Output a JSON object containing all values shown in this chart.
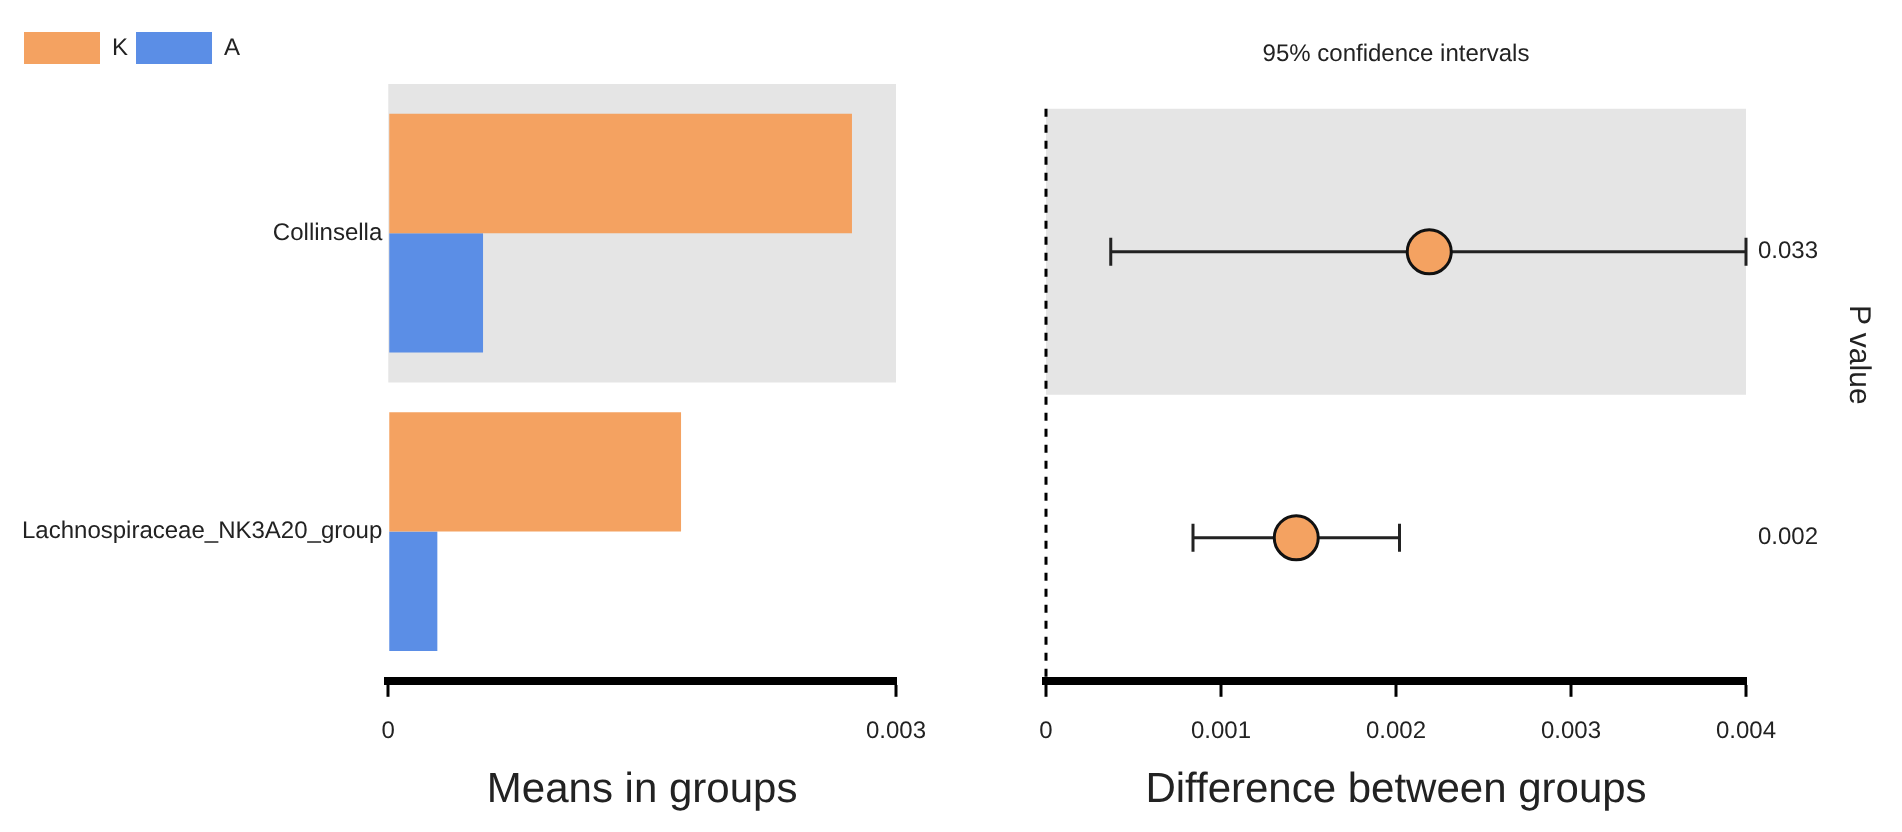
{
  "chart_data": [
    {
      "type": "bar",
      "orientation": "horizontal",
      "categories": [
        "Collinsella",
        "Lachnospiraceae_NK3A20_group"
      ],
      "series": [
        {
          "name": "K",
          "color": "#f4a261",
          "values": [
            0.00274,
            0.00173
          ]
        },
        {
          "name": "A",
          "color": "#5b8ee6",
          "values": [
            0.00056,
            0.00029
          ]
        }
      ],
      "xlim": [
        0,
        0.003
      ],
      "xticks": [
        0,
        0.003
      ],
      "xlabel": "Means in groups",
      "legend": "top left",
      "grid": false,
      "bands": [
        {
          "axis": "y",
          "from": "Collinsella",
          "to": "Collinsella",
          "color": "#e5e5e5"
        }
      ]
    },
    {
      "type": "scatter",
      "orientation": "horizontal",
      "categories": [
        "Collinsella",
        "Lachnospiraceae_NK3A20_group"
      ],
      "series": [
        {
          "color": "#f4a261",
          "values": [
            0.00219,
            0.00143
          ],
          "errors": [
            [
              0.00037,
              0.004
            ],
            [
              0.00084,
              0.00202
            ]
          ]
        }
      ],
      "marker": "circle",
      "title": "95% confidence intervals",
      "xlabel": "Difference between groups",
      "y2label": "P value",
      "xlim": [
        0,
        0.004
      ],
      "xticks": [
        0,
        0.001,
        0.002,
        0.003,
        0.004
      ],
      "tick_labels": "x",
      "legend": false,
      "grid": false,
      "ref_lines": [
        {
          "axis": "x",
          "value": 0,
          "line_style": "dashed"
        }
      ],
      "bands": [
        {
          "axis": "y",
          "from": "Collinsella",
          "to": "Collinsella",
          "color": "#e5e5e5"
        }
      ],
      "annotations": [
        "0.033",
        "0.002"
      ]
    }
  ]
}
